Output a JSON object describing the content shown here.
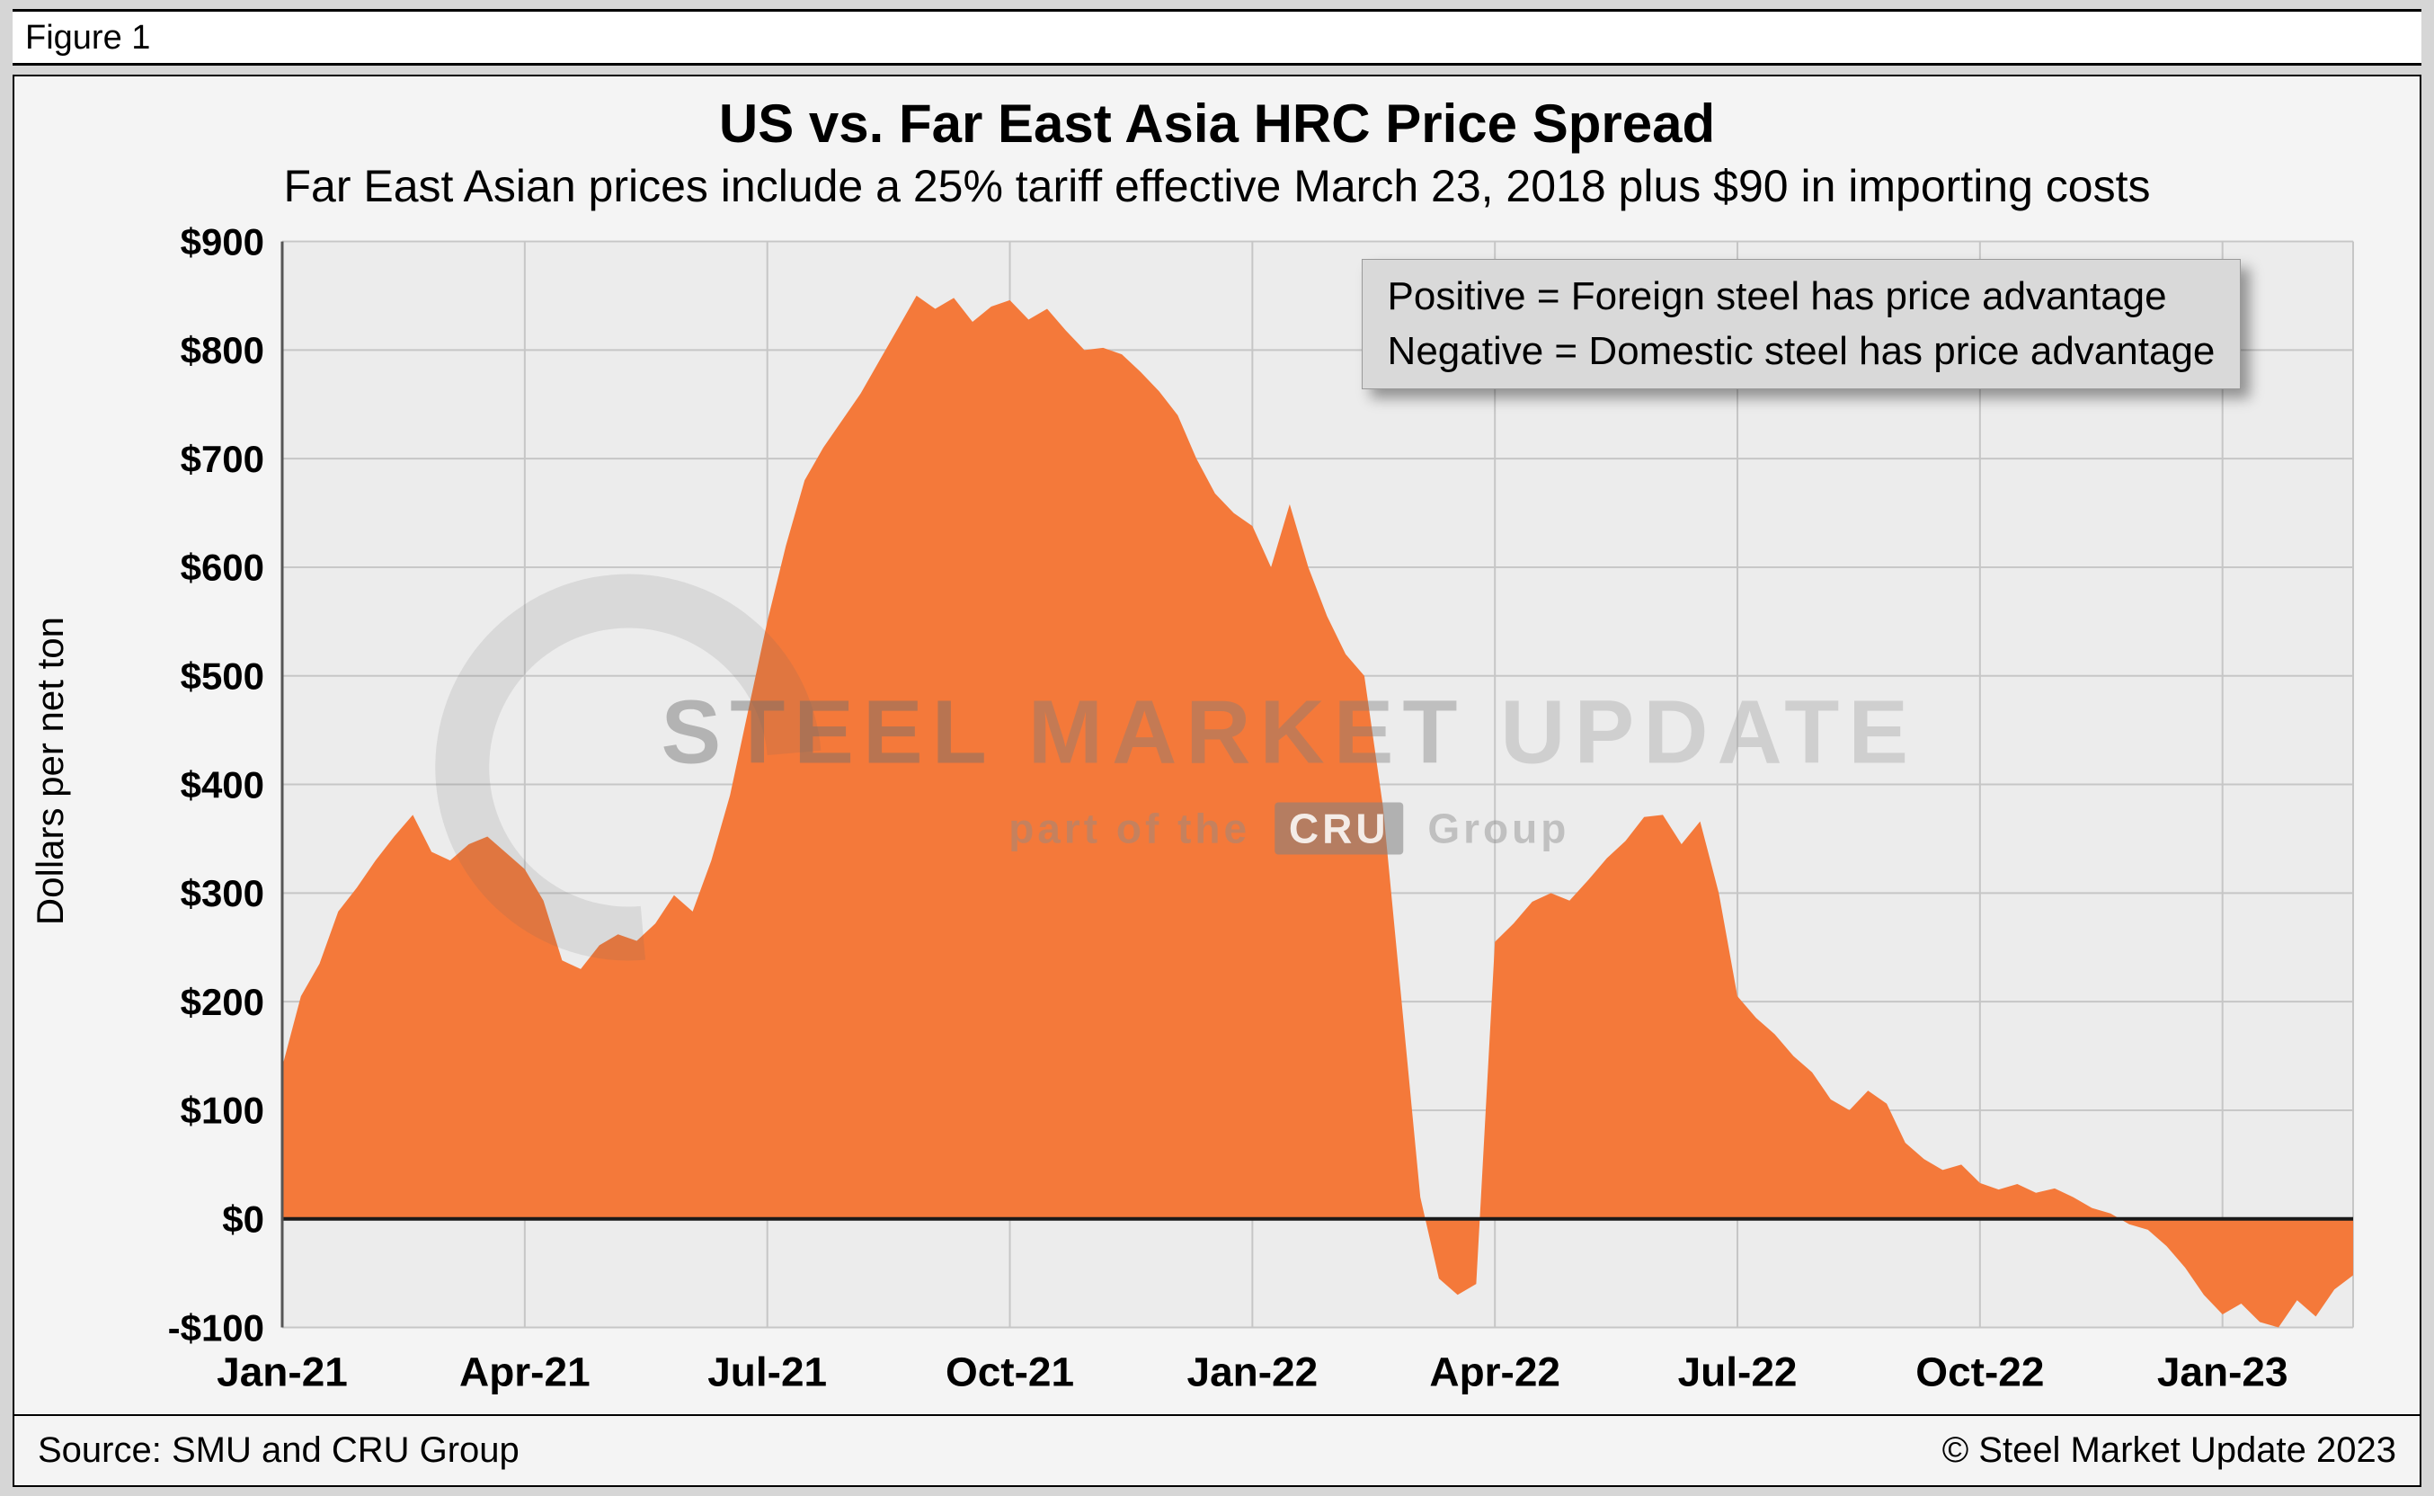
{
  "figure": {
    "label": "Figure 1"
  },
  "chart": {
    "title": "US vs. Far East Asia HRC Price Spread",
    "subtitle": "Far East Asian prices include a 25% tariff effective March 23, 2018 plus $90 in importing costs",
    "legend_line1": "Positive = Foreign steel has price advantage",
    "legend_line2": "Negative = Domestic steel has price advantage"
  },
  "watermark": {
    "line1_strong": "STEEL",
    "line1_mid": "MARKET",
    "line1_light": "UPDATE",
    "line2_prefix": "part of the",
    "cru": "CRU",
    "line2_suffix": "Group"
  },
  "footer": {
    "source": "Source: SMU and CRU Group",
    "copyright": "© Steel Market Update 2023"
  },
  "chart_data": {
    "type": "area",
    "title": "US vs. Far East Asia HRC Price Spread",
    "subtitle": "Far East Asian prices include a 25% tariff effective March 23, 2018 plus $90 in importing costs",
    "ylabel": "Dollars per net ton",
    "x_unit": "week",
    "x_start": "Jan-2021",
    "x_span_weeks": 111,
    "ylim": [
      -100,
      900
    ],
    "ytick_step": 100,
    "grid": true,
    "y_tick_labels": [
      "$900",
      "$800",
      "$700",
      "$600",
      "$500",
      "$400",
      "$300",
      "$200",
      "$100",
      "$0",
      "-$100"
    ],
    "x_ticks": [
      {
        "week": 0,
        "label": "Jan-21"
      },
      {
        "week": 13,
        "label": "Apr-21"
      },
      {
        "week": 26,
        "label": "Jul-21"
      },
      {
        "week": 39,
        "label": "Oct-21"
      },
      {
        "week": 52,
        "label": "Jan-22"
      },
      {
        "week": 65,
        "label": "Apr-22"
      },
      {
        "week": 78,
        "label": "Jul-22"
      },
      {
        "week": 91,
        "label": "Oct-22"
      },
      {
        "week": 104,
        "label": "Jan-23"
      }
    ],
    "series_name": "US minus Far East Asia HRC price spread (USD per net ton)",
    "values": [
      140,
      205,
      235,
      283,
      305,
      330,
      352,
      372,
      338,
      330,
      345,
      352,
      337,
      322,
      293,
      238,
      230,
      252,
      262,
      256,
      272,
      298,
      283,
      330,
      390,
      470,
      550,
      620,
      680,
      710,
      735,
      760,
      790,
      820,
      850,
      838,
      848,
      826,
      840,
      846,
      828,
      838,
      818,
      800,
      802,
      796,
      780,
      762,
      740,
      700,
      668,
      650,
      638,
      600,
      658,
      600,
      555,
      520,
      500,
      380,
      200,
      20,
      -55,
      -70,
      -60,
      255,
      272,
      292,
      300,
      293,
      312,
      332,
      348,
      370,
      372,
      345,
      366,
      300,
      205,
      185,
      170,
      150,
      135,
      110,
      100,
      118,
      106,
      70,
      55,
      45,
      50,
      33,
      27,
      32,
      24,
      28,
      20,
      10,
      5,
      -5,
      -10,
      -25,
      -45,
      -70,
      -88,
      -78,
      -95,
      -100,
      -75,
      -90,
      -65,
      -52
    ],
    "colors": {
      "area": "#F4793A",
      "plot_bg": "#ececec",
      "grid": "#c6c6c6",
      "zero_line": "#1a1a1a",
      "axis": "#555555"
    }
  }
}
